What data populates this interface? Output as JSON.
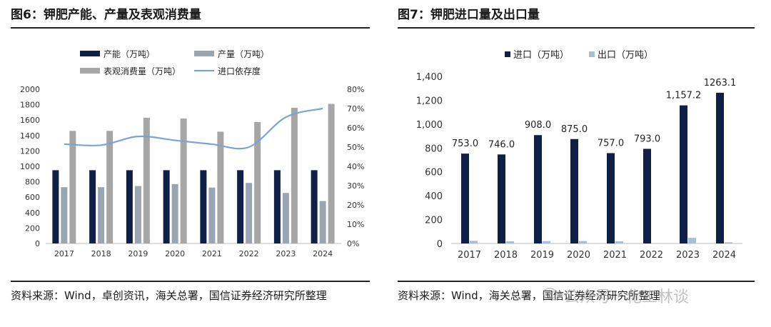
{
  "left": {
    "title": "图6：钾肥产能、产量及表观消费量",
    "source": "资料来源：Wind，卓创资讯，海关总署，国信证券经济研究所整理"
  },
  "right": {
    "title": "图7：钾肥进口量及出口量",
    "source": "资料来源：Wind，海关总署，国信证券经济研究所整理"
  },
  "watermark": "公众号 · 化工林谈",
  "colors": {
    "navy": "#0f1f45",
    "mid_gray": "#9aa5b2",
    "gray": "#a6a6a6",
    "line_blue": "#7ba3d4",
    "light_blue": "#a9bed6"
  },
  "chart_data": [
    {
      "type": "bar",
      "categories": [
        "2017",
        "2018",
        "2019",
        "2020",
        "2021",
        "2022",
        "2023",
        "2024"
      ],
      "series": [
        {
          "name": "产能（万吨）",
          "axis": "left",
          "values": [
            950,
            950,
            950,
            950,
            950,
            950,
            950,
            950
          ]
        },
        {
          "name": "产量（万吨）",
          "axis": "left",
          "values": [
            730,
            730,
            745,
            770,
            725,
            785,
            655,
            550
          ]
        },
        {
          "name": "表观消费量（万吨）",
          "axis": "left",
          "values": [
            1460,
            1460,
            1630,
            1620,
            1450,
            1575,
            1760,
            1810
          ]
        },
        {
          "name": "进口依存度",
          "axis": "right",
          "type": "line",
          "values": [
            51.5,
            51,
            55.5,
            53.5,
            51.5,
            50,
            65.5,
            70
          ]
        }
      ],
      "y_left": {
        "min": 0,
        "max": 2000,
        "ticks": [
          "0",
          "200",
          "400",
          "600",
          "800",
          "1000",
          "1200",
          "1400",
          "1600",
          "1800",
          "2000"
        ]
      },
      "y_right": {
        "min": 0,
        "max": 80,
        "ticks": [
          "0%",
          "10%",
          "20%",
          "30%",
          "40%",
          "50%",
          "60%",
          "70%",
          "80%"
        ]
      },
      "legend_placement": "top",
      "grid": false
    },
    {
      "type": "bar",
      "categories": [
        "2017",
        "2018",
        "2019",
        "2020",
        "2021",
        "2022",
        "2023",
        "2024"
      ],
      "series": [
        {
          "name": "进口（万吨）",
          "values": [
            753.0,
            746.0,
            908.0,
            875.0,
            757.0,
            793.0,
            1157.2,
            1263.1
          ],
          "labels": [
            "753.0",
            "746.0",
            "908.0",
            "875.0",
            "757.0",
            "793.0",
            "1,157.2",
            "1263.1"
          ]
        },
        {
          "name": "出口（万吨）",
          "values": [
            22,
            18,
            20,
            20,
            18,
            0,
            47,
            10
          ]
        }
      ],
      "y_left": {
        "min": 0,
        "max": 1400,
        "ticks": [
          "0",
          "200",
          "400",
          "600",
          "800",
          "1,000",
          "1,200",
          "1,400"
        ]
      },
      "legend_placement": "top",
      "grid": false
    }
  ]
}
